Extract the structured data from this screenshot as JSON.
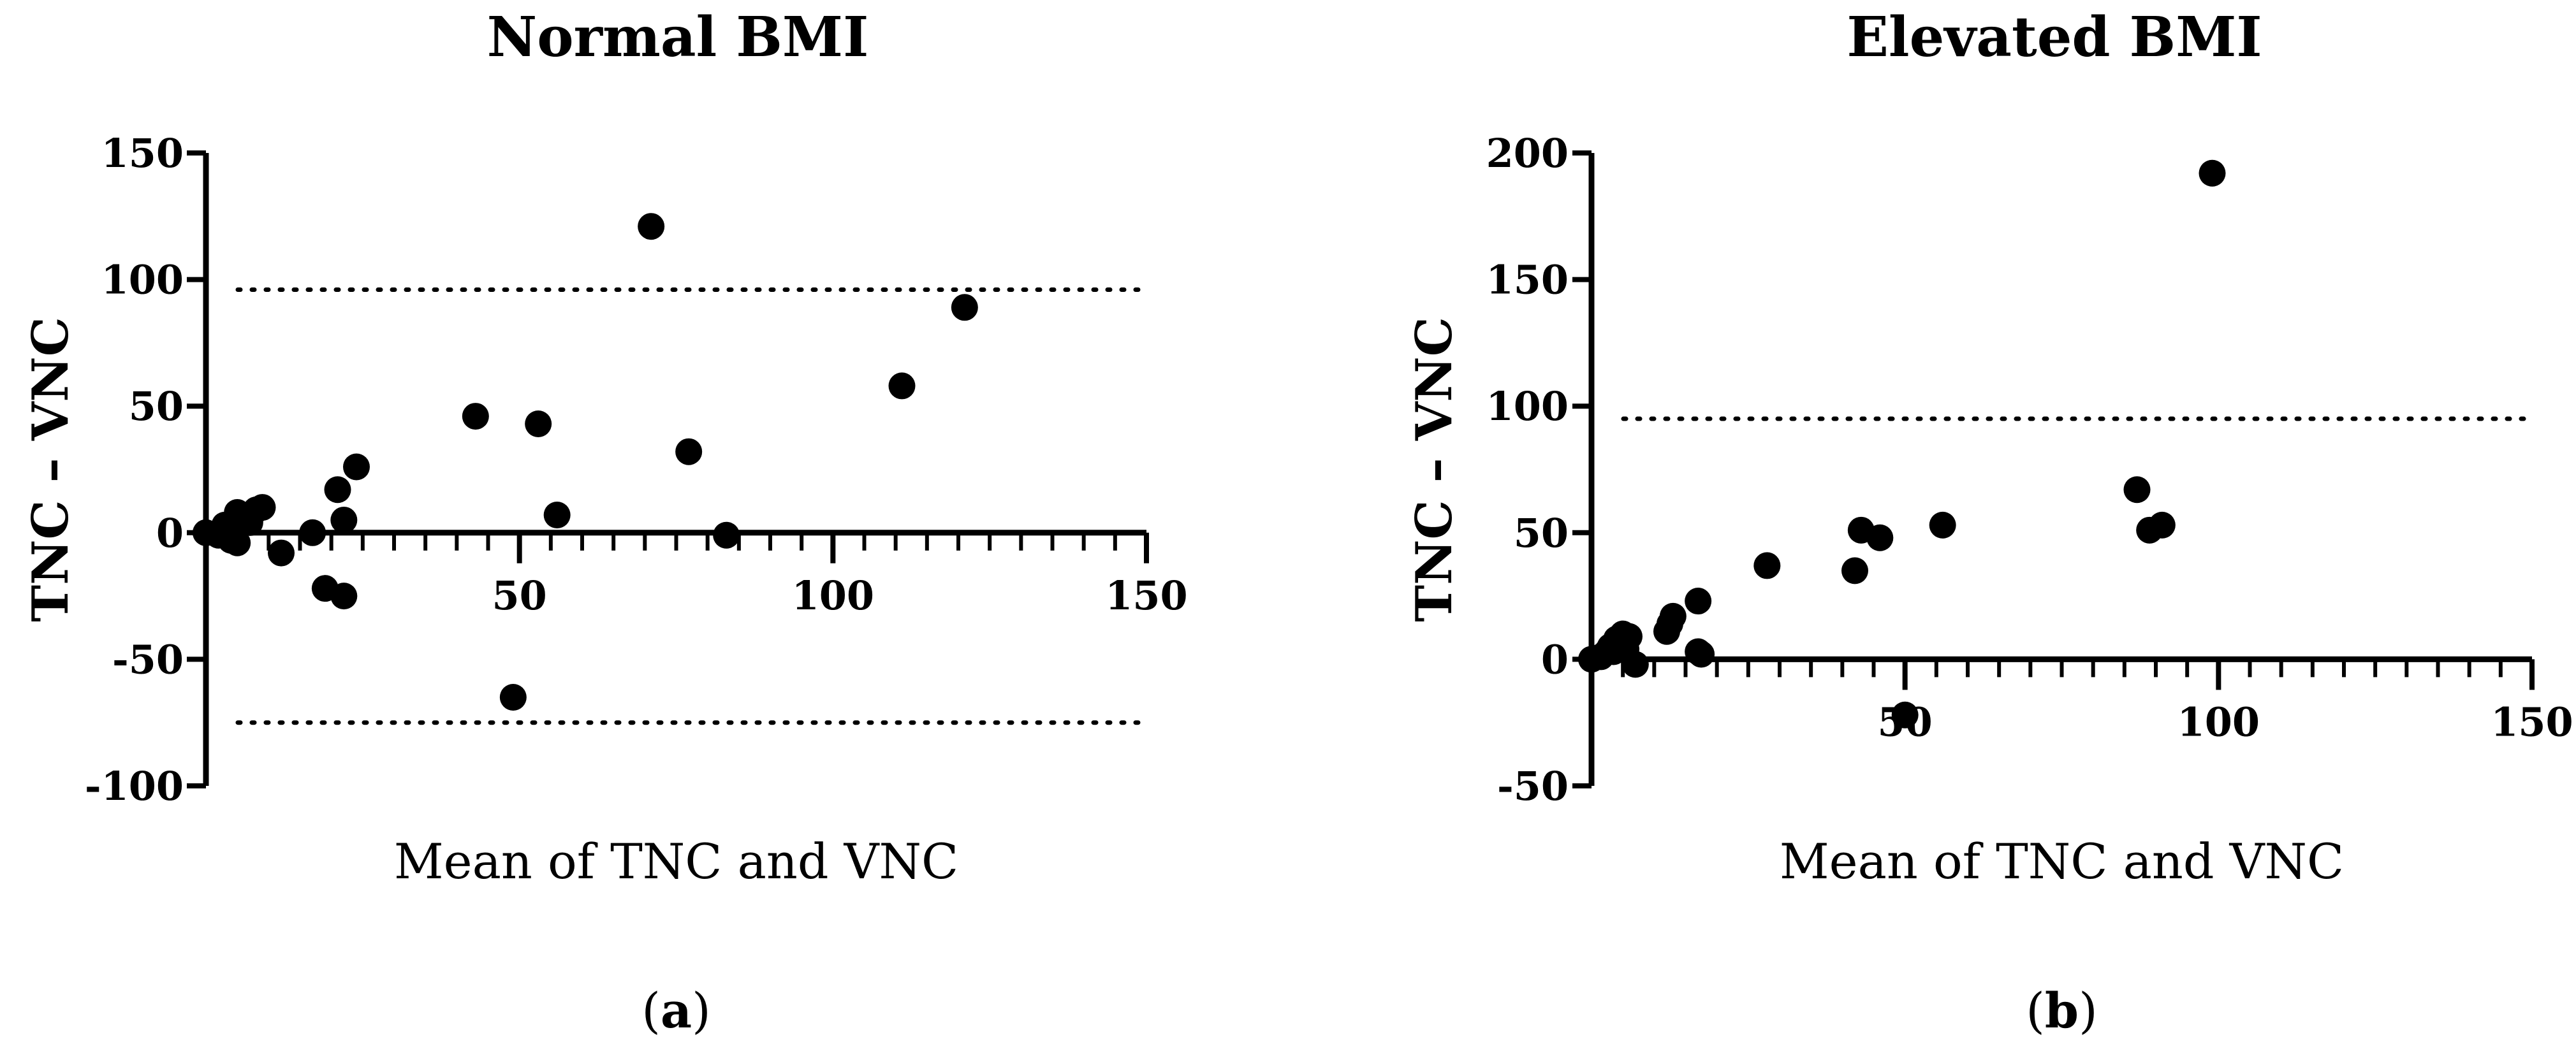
{
  "chart_data": [
    {
      "type": "scatter",
      "title": "Normal BMI",
      "xlabel": "Mean of TNC and VNC",
      "ylabel": "TNC – VNC",
      "xlim": [
        0,
        150
      ],
      "ylim": [
        -100,
        150
      ],
      "x_ticks": [
        50,
        100,
        150
      ],
      "y_ticks": [
        150,
        100,
        50,
        0,
        -50,
        -100
      ],
      "x_minor_step": 5,
      "reference_lines": [
        96,
        -75
      ],
      "caption_letter": "a",
      "points": [
        {
          "x": 0,
          "y": 0
        },
        {
          "x": 2,
          "y": -1
        },
        {
          "x": 3,
          "y": 3
        },
        {
          "x": 4,
          "y": -3
        },
        {
          "x": 4.5,
          "y": 2
        },
        {
          "x": 5,
          "y": -4
        },
        {
          "x": 5,
          "y": 8
        },
        {
          "x": 6,
          "y": 5
        },
        {
          "x": 7,
          "y": 4
        },
        {
          "x": 8,
          "y": 9
        },
        {
          "x": 9,
          "y": 10
        },
        {
          "x": 12,
          "y": -8
        },
        {
          "x": 17,
          "y": 0
        },
        {
          "x": 19,
          "y": -22
        },
        {
          "x": 21,
          "y": 17
        },
        {
          "x": 22,
          "y": -25
        },
        {
          "x": 22,
          "y": 5
        },
        {
          "x": 24,
          "y": 26
        },
        {
          "x": 43,
          "y": 46
        },
        {
          "x": 49,
          "y": -65
        },
        {
          "x": 53,
          "y": 43
        },
        {
          "x": 56,
          "y": 7
        },
        {
          "x": 71,
          "y": 121
        },
        {
          "x": 77,
          "y": 32
        },
        {
          "x": 83,
          "y": -1
        },
        {
          "x": 111,
          "y": 58
        },
        {
          "x": 121,
          "y": 89
        }
      ]
    },
    {
      "type": "scatter",
      "title": "Elevated BMI",
      "xlabel": "Mean of TNC and VNC",
      "ylabel": "TNC – VNC",
      "xlim": [
        0,
        150
      ],
      "ylim": [
        -50,
        200
      ],
      "x_ticks": [
        50,
        100,
        150
      ],
      "y_ticks": [
        200,
        150,
        100,
        50,
        0,
        -50
      ],
      "x_minor_step": 5,
      "reference_lines": [
        95
      ],
      "caption_letter": "b",
      "points": [
        {
          "x": 0,
          "y": 0
        },
        {
          "x": 1.5,
          "y": 1
        },
        {
          "x": 2.5,
          "y": 3
        },
        {
          "x": 3,
          "y": 5
        },
        {
          "x": 3.5,
          "y": 3
        },
        {
          "x": 4,
          "y": 8
        },
        {
          "x": 4.5,
          "y": 6
        },
        {
          "x": 5,
          "y": 10
        },
        {
          "x": 5.5,
          "y": 4
        },
        {
          "x": 6,
          "y": 9
        },
        {
          "x": 7,
          "y": -2
        },
        {
          "x": 12,
          "y": 11
        },
        {
          "x": 12.5,
          "y": 14
        },
        {
          "x": 13,
          "y": 17
        },
        {
          "x": 17,
          "y": 23
        },
        {
          "x": 17,
          "y": 3
        },
        {
          "x": 17.5,
          "y": 2
        },
        {
          "x": 28,
          "y": 37
        },
        {
          "x": 42,
          "y": 35
        },
        {
          "x": 43,
          "y": 51
        },
        {
          "x": 46,
          "y": 48
        },
        {
          "x": 50,
          "y": -22
        },
        {
          "x": 56,
          "y": 53
        },
        {
          "x": 87,
          "y": 67
        },
        {
          "x": 89,
          "y": 51
        },
        {
          "x": 91,
          "y": 53
        },
        {
          "x": 99,
          "y": 192
        }
      ]
    }
  ]
}
